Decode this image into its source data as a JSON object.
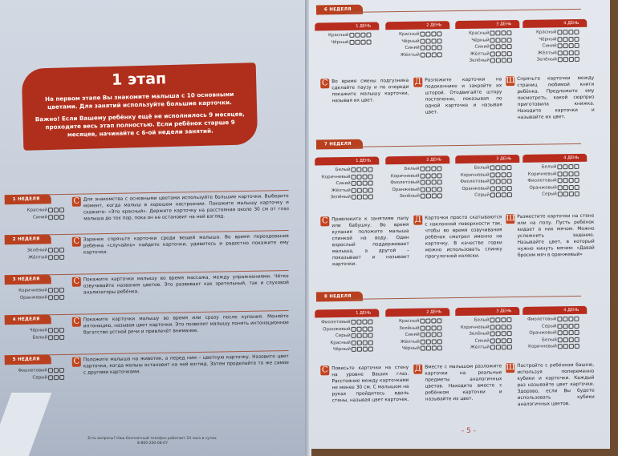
{
  "stage": {
    "title": "1 этап",
    "intro": "На первом этапе Вы знакомите малыша с 10 основными цветами. Для занятий используйте большие карточки.",
    "note": "Важно! Если Вашему ребёнку ещё не исполнилось 9 месяцев, проходите весь этап полностью. Если ребёнок старше 9 месяцев, начинайте с 6-ой недели занятий."
  },
  "left_weeks": [
    {
      "label": "1 НЕДЕЛЯ",
      "colors": [
        "Красный",
        "Синий"
      ],
      "tip": {
        "icon": "С",
        "text": "Для знакомства с основными цветами используйте большие карточки. Выберите момент, когда малыш в хорошем настроении. Покажите малышу карточку и скажите: «Это красный». Держите карточку на расстоянии около 30 см от глаз малыша до тех пор, пока он не остановит на ней взгляд."
      }
    },
    {
      "label": "2 НЕДЕЛЯ",
      "colors": [
        "Зелёный",
        "Жёлтый"
      ],
      "tip": {
        "icon": "С",
        "text": "Заранее спрячьте карточки среди вещей малыша. Во время переодевания ребёнка «случайно» найдите карточки, удивитесь и радостно покажите ему карточки."
      }
    },
    {
      "label": "3 НЕДЕЛЯ",
      "colors": [
        "Коричневый",
        "Оранжевый"
      ],
      "tip": {
        "icon": "С",
        "text": "Покажите карточки малышу во время массажа, между упражнениями. Чётко озвучивайте названия цветов. Это развивает как зрительный, так и слуховой анализаторы ребёнка."
      }
    },
    {
      "label": "4 НЕДЕЛЯ",
      "colors": [
        "Чёрный",
        "Белый"
      ],
      "tip": {
        "icon": "С",
        "text": "Покажите карточки малышу во время или сразу после купания. Меняйте интонацию, называя цвет карточки. Это позволит малышу понять интонационное богатство устной речи и привлечёт внимание."
      }
    },
    {
      "label": "5 НЕДЕЛЯ",
      "colors": [
        "Фиолетовый",
        "Серый"
      ],
      "tip": {
        "icon": "С",
        "text": "Положите малыша на животик, а перед ним – цветную карточку. Назовите цвет карточки, когда малыш остановит на ней взгляд. Затем проделайте то же самое с другими карточками."
      }
    }
  ],
  "right_weeks": [
    {
      "label": "6 НЕДЕЛЯ",
      "days": [
        {
          "label": "1 ДЕНЬ",
          "colors": [
            "Красный",
            "Чёрный"
          ]
        },
        {
          "label": "2 ДЕНЬ",
          "colors": [
            "Красный",
            "Чёрный",
            "Синий",
            "Жёлтый"
          ]
        },
        {
          "label": "3 ДЕНЬ",
          "colors": [
            "Красный",
            "Чёрный",
            "Синий",
            "Жёлтый",
            "Зелёный"
          ]
        },
        {
          "label": "4 ДЕНЬ",
          "colors": [
            "Красный",
            "Чёрный",
            "Синий",
            "Жёлтый",
            "Зелёный"
          ]
        }
      ],
      "tips": [
        {
          "icon": "С",
          "text": "Во время смены подгузника сделайте паузу и по очереди покажите малышу карточки, называя их цвет."
        },
        {
          "icon": "Д",
          "text": "Разложите карточки на подоконнике и закройте их шторой. Отодвигайте штору постепенно, показывая по одной карточке и называя цвет."
        },
        {
          "icon": "Ш",
          "text": "Спрячьте карточки между страниц любимой книги ребёнка. Предложите ему посмотреть, какой сюрприз приготовила книжка. Находите карточки и называйте их цвет."
        }
      ]
    },
    {
      "label": "7 НЕДЕЛЯ",
      "days": [
        {
          "label": "1 ДЕНЬ",
          "colors": [
            "Белый",
            "Коричневый",
            "Синий",
            "Жёлтый",
            "Зелёный"
          ]
        },
        {
          "label": "2 ДЕНЬ",
          "colors": [
            "Белый",
            "Коричневый",
            "Фиолетовый",
            "Оранжевый",
            "Зелёный"
          ]
        },
        {
          "label": "3 ДЕНЬ",
          "colors": [
            "Белый",
            "Коричневый",
            "Фиолетовый",
            "Оранжевый",
            "Серый"
          ]
        },
        {
          "label": "4 ДЕНЬ",
          "colors": [
            "Белый",
            "Коричневый",
            "Фиолетовый",
            "Оранжевый",
            "Серый"
          ]
        }
      ],
      "tips": [
        {
          "icon": "С",
          "text": "Привлеките к занятиям папу или бабушку. Во время купания положите малыша спинкой на воду. Один взрослый поддерживает малыша, а другой – показывает и называет карточки."
        },
        {
          "icon": "Д",
          "text": "Карточки просто скатываются с наклонной поверхности так, чтобы во время озвучивания ребёнок смотрел именно на карточку. В качестве горки можно использовать спинку прогулочной коляски."
        },
        {
          "icon": "Ш",
          "text": "Разместите карточки на стене или на полу. Пусть ребёнок кидает в них мячом. Можно усложнить задание. Называйте цвет, в который нужно кинуть мячом: «Давай бросим мяч в оранжевый»"
        }
      ]
    },
    {
      "label": "8 НЕДЕЛЯ",
      "days": [
        {
          "label": "1 ДЕНЬ",
          "colors": [
            "Фиолетовый",
            "Оранжевый",
            "Серый",
            "Красный",
            "Чёрный"
          ]
        },
        {
          "label": "2 ДЕНЬ",
          "colors": [
            "Красный",
            "Зелёный",
            "Синий",
            "Жёлтый",
            "Чёрный"
          ]
        },
        {
          "label": "3 ДЕНЬ",
          "colors": [
            "Белый",
            "Коричневый",
            "Зелёный",
            "Синий",
            "Жёлтый"
          ]
        },
        {
          "label": "4 ДЕНЬ",
          "colors": [
            "Фиолетовый",
            "Серый",
            "Оранжевый",
            "Белый",
            "Коричневый"
          ]
        }
      ],
      "tips": [
        {
          "icon": "С",
          "text": "Повесьте карточки на стену на уровне Ваших глаз. Расстояние между карточками не менее 30 см. С малышом на руках пройдитесь вдоль стены, называя цвет карточек."
        },
        {
          "icon": "Д",
          "text": "Вместе с малышом разложите карточки на реальные предметы аналогичных цветов. Находите вместе с ребёнком карточки и называйте их цвет."
        },
        {
          "icon": "Ш",
          "text": "Постройте с ребёнком башню, используя попеременно кубики и карточки. Каждый раз называйте цвет карточки. Здорово, если Вы будете использовать кубики аналогичных цветов."
        }
      ]
    }
  ],
  "footer": {
    "question": "Есть вопросы? Наш бесплатный телефон работает 24 часа в сутки:",
    "phone": "8-800-200-08-07"
  },
  "page_number": "- 5 -",
  "accent_color": "#b02f1c"
}
